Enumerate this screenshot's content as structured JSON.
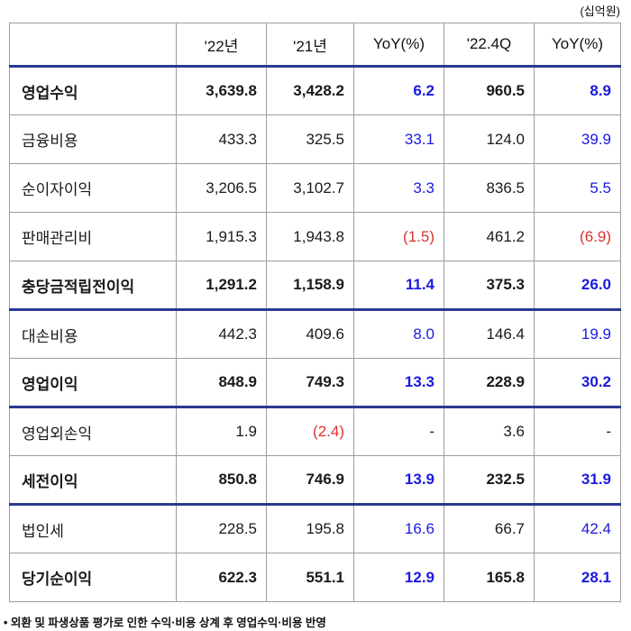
{
  "unit_label": "(십억원)",
  "footnote": "• 외환 및 파생상품 평가로 인한 수익·비용 상계 후 영업수익·비용 반영",
  "colors": {
    "section_line_navy": "#2b3990",
    "positive_blue_text": "#1a1ae0",
    "negative_red_text": "#d8342c",
    "grid_border_gray": "#9e9e9e"
  },
  "table": {
    "columns": [
      "",
      "'22년",
      "'21년",
      "YoY(%)",
      "'22.4Q",
      "YoY(%)"
    ],
    "rows": [
      {
        "label": "영업수익",
        "bold": true,
        "section_end": false,
        "cells": [
          {
            "t": "3,639.8",
            "c": ""
          },
          {
            "t": "3,428.2",
            "c": ""
          },
          {
            "t": "6.2",
            "c": "blue"
          },
          {
            "t": "960.5",
            "c": ""
          },
          {
            "t": "8.9",
            "c": "blue"
          }
        ]
      },
      {
        "label": "금융비용",
        "bold": false,
        "section_end": false,
        "cells": [
          {
            "t": "433.3",
            "c": ""
          },
          {
            "t": "325.5",
            "c": ""
          },
          {
            "t": "33.1",
            "c": "blue"
          },
          {
            "t": "124.0",
            "c": ""
          },
          {
            "t": "39.9",
            "c": "blue"
          }
        ]
      },
      {
        "label": "순이자이익",
        "bold": false,
        "section_end": false,
        "cells": [
          {
            "t": "3,206.5",
            "c": ""
          },
          {
            "t": "3,102.7",
            "c": ""
          },
          {
            "t": "3.3",
            "c": "blue"
          },
          {
            "t": "836.5",
            "c": ""
          },
          {
            "t": "5.5",
            "c": "blue"
          }
        ]
      },
      {
        "label": "판매관리비",
        "bold": false,
        "section_end": false,
        "cells": [
          {
            "t": "1,915.3",
            "c": ""
          },
          {
            "t": "1,943.8",
            "c": ""
          },
          {
            "t": "(1.5)",
            "c": "red"
          },
          {
            "t": "461.2",
            "c": ""
          },
          {
            "t": "(6.9)",
            "c": "red"
          }
        ]
      },
      {
        "label": "충당금적립전이익",
        "bold": true,
        "section_end": true,
        "cells": [
          {
            "t": "1,291.2",
            "c": ""
          },
          {
            "t": "1,158.9",
            "c": ""
          },
          {
            "t": "11.4",
            "c": "blue"
          },
          {
            "t": "375.3",
            "c": ""
          },
          {
            "t": "26.0",
            "c": "blue"
          }
        ]
      },
      {
        "label": "대손비용",
        "bold": false,
        "section_end": false,
        "cells": [
          {
            "t": "442.3",
            "c": ""
          },
          {
            "t": "409.6",
            "c": ""
          },
          {
            "t": "8.0",
            "c": "blue"
          },
          {
            "t": "146.4",
            "c": ""
          },
          {
            "t": "19.9",
            "c": "blue"
          }
        ]
      },
      {
        "label": "영업이익",
        "bold": true,
        "section_end": true,
        "cells": [
          {
            "t": "848.9",
            "c": ""
          },
          {
            "t": "749.3",
            "c": ""
          },
          {
            "t": "13.3",
            "c": "blue"
          },
          {
            "t": "228.9",
            "c": ""
          },
          {
            "t": "30.2",
            "c": "blue"
          }
        ]
      },
      {
        "label": "영업외손익",
        "bold": false,
        "section_end": false,
        "cells": [
          {
            "t": "1.9",
            "c": ""
          },
          {
            "t": "(2.4)",
            "c": "red"
          },
          {
            "t": "-",
            "c": ""
          },
          {
            "t": "3.6",
            "c": ""
          },
          {
            "t": "-",
            "c": ""
          }
        ]
      },
      {
        "label": "세전이익",
        "bold": true,
        "section_end": true,
        "cells": [
          {
            "t": "850.8",
            "c": ""
          },
          {
            "t": "746.9",
            "c": ""
          },
          {
            "t": "13.9",
            "c": "blue"
          },
          {
            "t": "232.5",
            "c": ""
          },
          {
            "t": "31.9",
            "c": "blue"
          }
        ]
      },
      {
        "label": "법인세",
        "bold": false,
        "section_end": false,
        "cells": [
          {
            "t": "228.5",
            "c": ""
          },
          {
            "t": "195.8",
            "c": ""
          },
          {
            "t": "16.6",
            "c": "blue"
          },
          {
            "t": "66.7",
            "c": ""
          },
          {
            "t": "42.4",
            "c": "blue"
          }
        ]
      },
      {
        "label": "당기순이익",
        "bold": true,
        "section_end": false,
        "cells": [
          {
            "t": "622.3",
            "c": ""
          },
          {
            "t": "551.1",
            "c": ""
          },
          {
            "t": "12.9",
            "c": "blue"
          },
          {
            "t": "165.8",
            "c": ""
          },
          {
            "t": "28.1",
            "c": "blue"
          }
        ]
      }
    ]
  }
}
